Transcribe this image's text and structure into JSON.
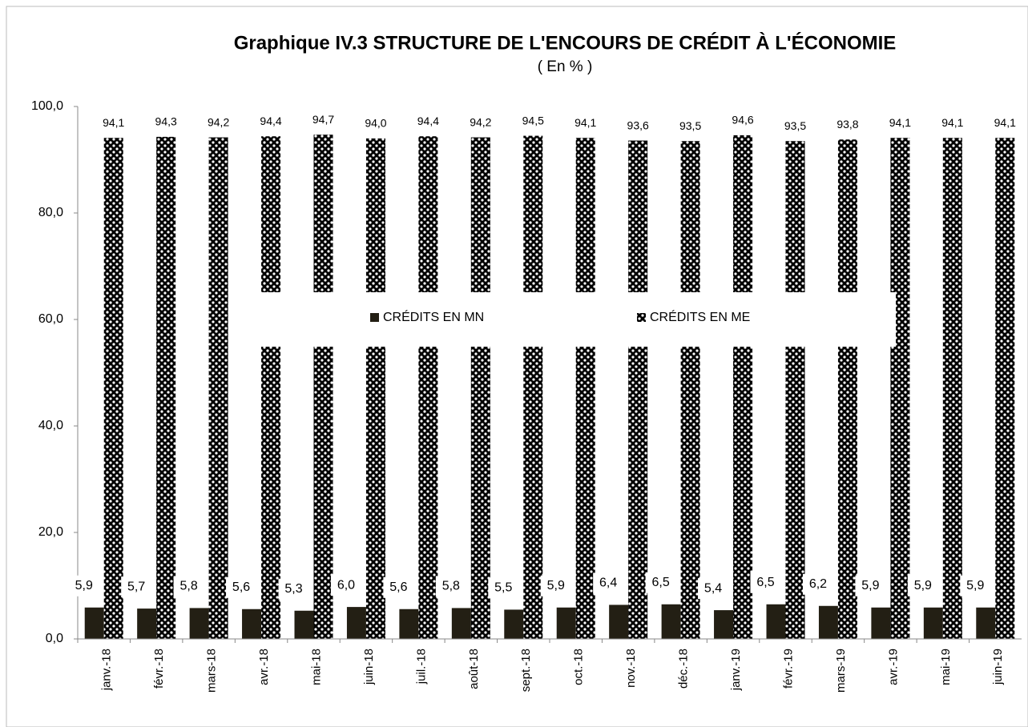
{
  "chart_data": {
    "type": "bar",
    "title": "Graphique IV.3  STRUCTURE DE L'ENCOURS DE CRÉDIT À L'ÉCONOMIE",
    "subtitle": "( En % )",
    "categories": [
      "janv.-18",
      "févr.-18",
      "mars-18",
      "avr.-18",
      "mai-18",
      "juin-18",
      "juil.-18",
      "août-18",
      "sept.-18",
      "oct.-18",
      "nov.-18",
      "déc.-18",
      "janv.-19",
      "févr.-19",
      "mars-19",
      "avr.-19",
      "mai-19",
      "juin-19"
    ],
    "series": [
      {
        "name": "CRÉDITS EN MN",
        "color": "#231f14",
        "values": [
          5.9,
          5.7,
          5.8,
          5.6,
          5.3,
          6.0,
          5.6,
          5.8,
          5.5,
          5.9,
          6.4,
          6.5,
          5.4,
          6.5,
          6.2,
          5.9,
          5.9,
          5.9
        ],
        "value_labels": [
          "5,9",
          "5,7",
          "5,8",
          "5,6",
          "5,3",
          "6,0",
          "5,6",
          "5,8",
          "5,5",
          "5,9",
          "6,4",
          "6,5",
          "5,4",
          "6,5",
          "6,2",
          "5,9",
          "5,9",
          "5,9"
        ]
      },
      {
        "name": "CRÉDITS EN ME",
        "color": "#000000",
        "values": [
          94.1,
          94.3,
          94.2,
          94.4,
          94.7,
          94.0,
          94.4,
          94.2,
          94.5,
          94.1,
          93.6,
          93.5,
          94.6,
          93.5,
          93.8,
          94.1,
          94.1,
          94.1
        ],
        "value_labels": [
          "94,1",
          "94,3",
          "94,2",
          "94,4",
          "94,7",
          "94,0",
          "94,4",
          "94,2",
          "94,5",
          "94,1",
          "93,6",
          "93,5",
          "94,6",
          "93,5",
          "93,8",
          "94,1",
          "94,1",
          "94,1"
        ]
      }
    ],
    "ylim": [
      0,
      100
    ],
    "yticks": [
      {
        "value": 0,
        "label": "0,0"
      },
      {
        "value": 20,
        "label": "20,0"
      },
      {
        "value": 40,
        "label": "40,0"
      },
      {
        "value": 60,
        "label": "60,0"
      },
      {
        "value": 80,
        "label": "80,0"
      },
      {
        "value": 100,
        "label": "100,0"
      }
    ]
  }
}
